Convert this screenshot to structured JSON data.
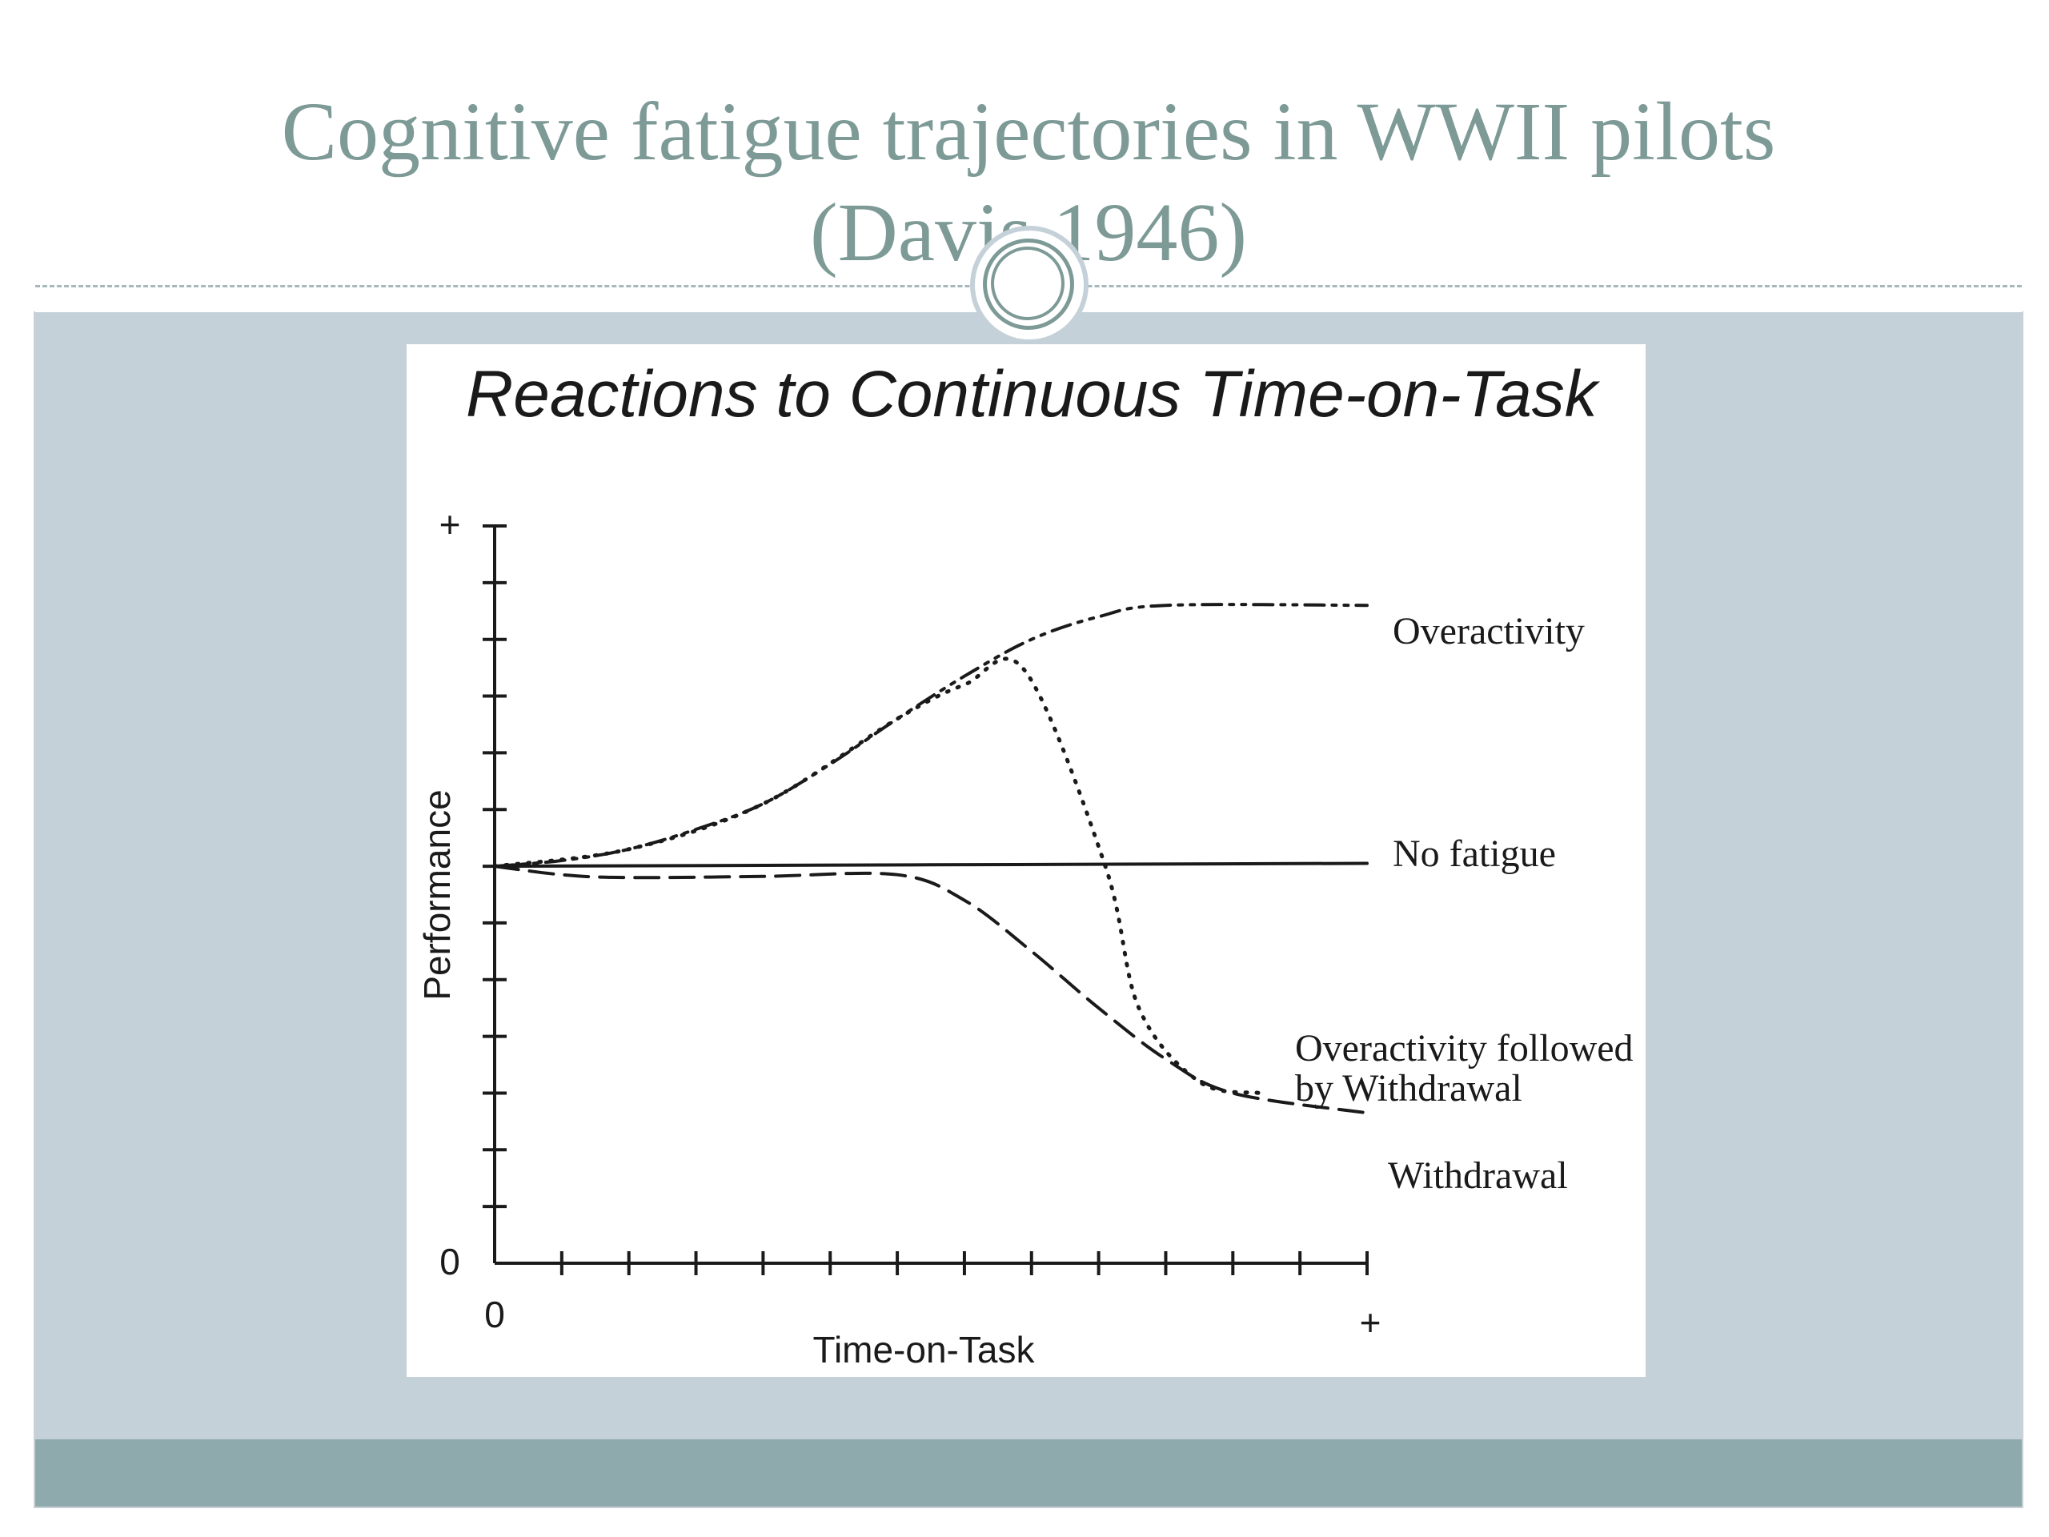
{
  "slide": {
    "title_line1": "Cognitive fatigue trajectories in WWII pilots",
    "title_line2": "(Davis 1946)",
    "colors": {
      "title": "#7d9a96",
      "content_background": "#c5d1d8",
      "footer": "#8eaaad",
      "figure_background": "#ffffff",
      "ink": "#1a1a1a"
    }
  },
  "chart_data": {
    "type": "line",
    "title": "Reactions to Continuous Time-on-Task",
    "xlabel": "Time-on-Task",
    "ylabel": "Performance",
    "x_ticks": [
      "0",
      "+"
    ],
    "y_ticks": [
      "0",
      "+"
    ],
    "xlim": [
      0,
      13
    ],
    "ylim": [
      0,
      13
    ],
    "x_tick_count": 13,
    "y_tick_count": 13,
    "grid": false,
    "legend": "none",
    "series": [
      {
        "name": "Overactivity",
        "style": "dash-dot-dot",
        "points": [
          [
            0,
            7
          ],
          [
            1,
            7.1
          ],
          [
            2,
            7.3
          ],
          [
            3,
            7.65
          ],
          [
            4,
            8.1
          ],
          [
            5,
            8.8
          ],
          [
            6,
            9.6
          ],
          [
            7,
            10.35
          ],
          [
            8,
            11
          ],
          [
            9,
            11.4
          ],
          [
            10,
            11.6
          ],
          [
            13,
            11.6
          ]
        ]
      },
      {
        "name": "No fatigue",
        "style": "solid",
        "points": [
          [
            0,
            7
          ],
          [
            13,
            7.05
          ]
        ]
      },
      {
        "name": "Overactivity followed by Withdrawal",
        "style": "dotted",
        "points": [
          [
            0,
            7
          ],
          [
            2,
            7.3
          ],
          [
            4,
            8.1
          ],
          [
            6,
            9.6
          ],
          [
            7,
            10.2
          ],
          [
            7.9,
            10.45
          ],
          [
            9.1,
            7
          ],
          [
            9.6,
            4.5
          ],
          [
            10.5,
            3.2
          ],
          [
            11.4,
            3.0
          ]
        ]
      },
      {
        "name": "Withdrawal",
        "style": "dashed",
        "points": [
          [
            0,
            7
          ],
          [
            1,
            6.85
          ],
          [
            2,
            6.8
          ],
          [
            4,
            6.82
          ],
          [
            6,
            6.85
          ],
          [
            7,
            6.4
          ],
          [
            8,
            5.5
          ],
          [
            9,
            4.5
          ],
          [
            10,
            3.6
          ],
          [
            11,
            3.0
          ],
          [
            13,
            2.65
          ]
        ]
      }
    ]
  }
}
